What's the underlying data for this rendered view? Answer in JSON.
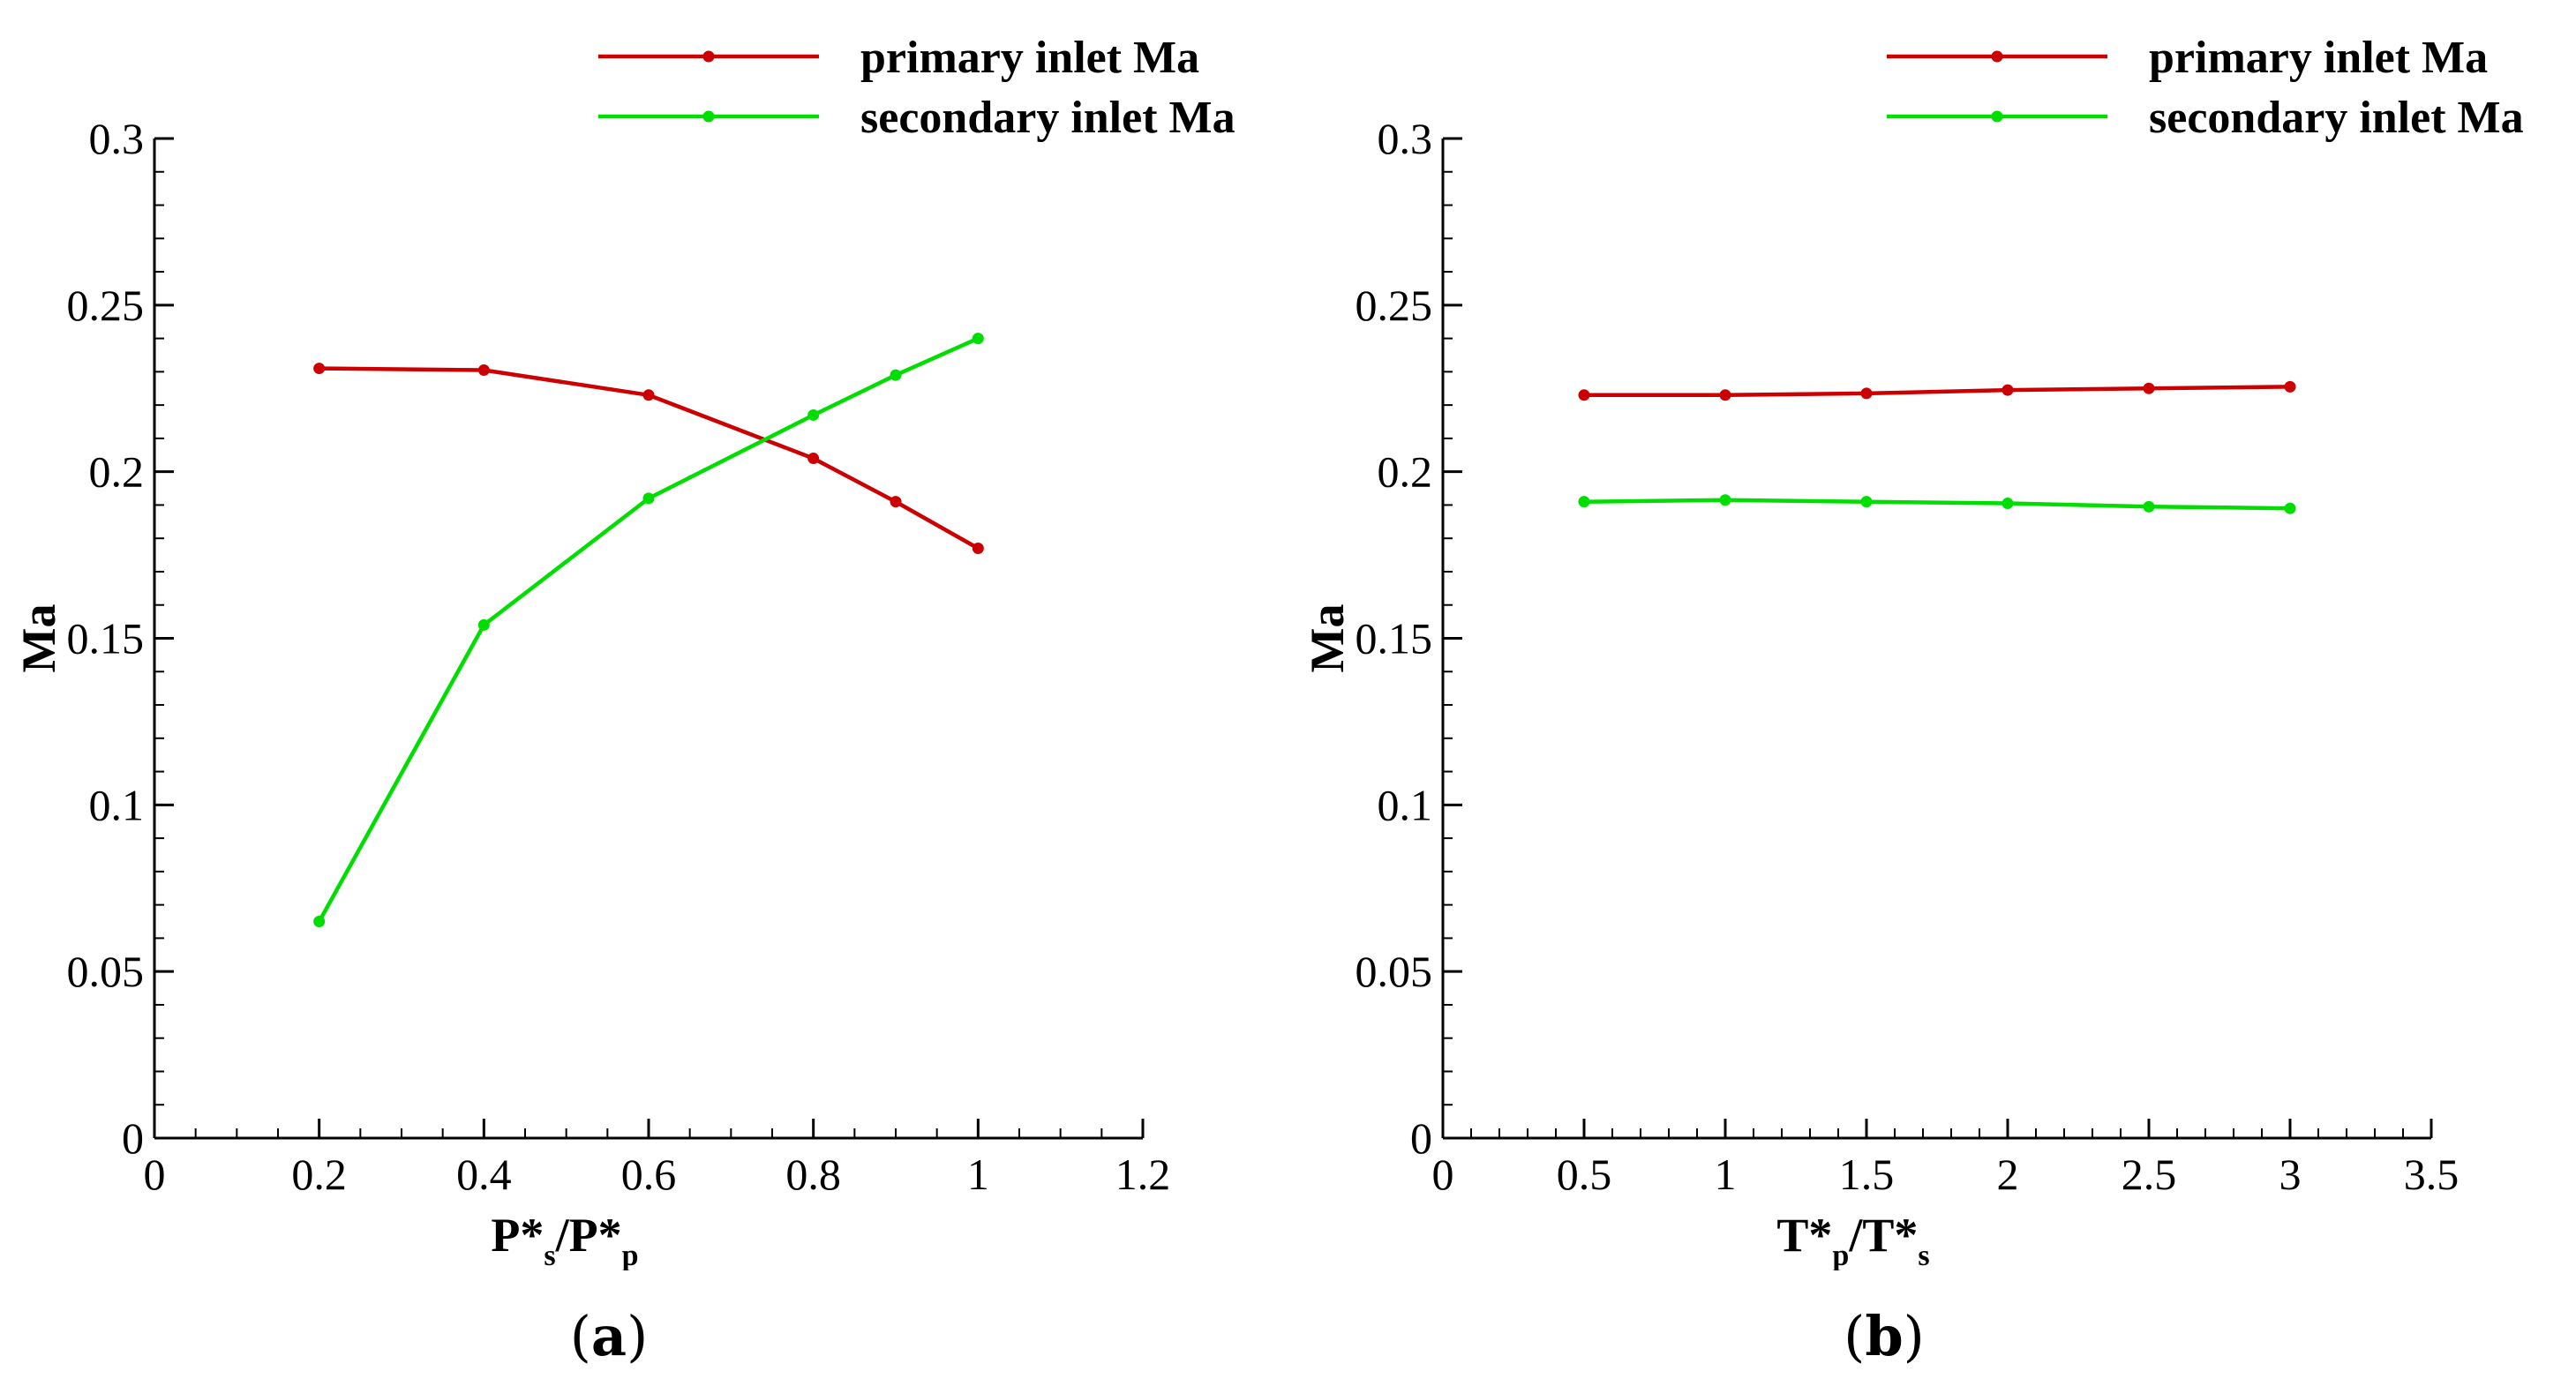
{
  "chart_data": [
    {
      "type": "line",
      "panel_label": "a",
      "xlabel": {
        "main": "P*",
        "sub": "s",
        "sep": "/P*",
        "sub2": "p"
      },
      "ylabel": "Ma",
      "xlim": [
        0,
        1.2
      ],
      "ylim": [
        0,
        0.3
      ],
      "x_ticks": [
        0,
        0.2,
        0.4,
        0.6,
        0.8,
        1,
        1.2
      ],
      "x_tick_labels": [
        "0",
        "0.2",
        "0.4",
        "0.6",
        "0.8",
        "1",
        "1.2"
      ],
      "y_ticks": [
        0,
        0.05,
        0.1,
        0.15,
        0.2,
        0.25,
        0.3
      ],
      "y_tick_labels": [
        "0",
        "0.05",
        "0.1",
        "0.15",
        "0.2",
        "0.25",
        "0.3"
      ],
      "x_minor_step": 0.05,
      "y_minor_step": 0.01,
      "legend_position": "top-right",
      "series": [
        {
          "name": "primary inlet Ma",
          "color": "#cc0000",
          "x": [
            0.2,
            0.4,
            0.6,
            0.8,
            0.9,
            1.0
          ],
          "y": [
            0.231,
            0.2305,
            0.223,
            0.204,
            0.191,
            0.177
          ]
        },
        {
          "name": "secondary inlet Ma",
          "color": "#00dd00",
          "x": [
            0.2,
            0.4,
            0.6,
            0.8,
            0.9,
            1.0
          ],
          "y": [
            0.065,
            0.154,
            0.192,
            0.217,
            0.229,
            0.24
          ]
        }
      ]
    },
    {
      "type": "line",
      "panel_label": "b",
      "xlabel": {
        "main": "T*",
        "sub": "p",
        "sep": "/T*",
        "sub2": "s"
      },
      "ylabel": "Ma",
      "xlim": [
        0,
        3.5
      ],
      "ylim": [
        0,
        0.3
      ],
      "x_ticks": [
        0,
        0.5,
        1,
        1.5,
        2,
        2.5,
        3,
        3.5
      ],
      "x_tick_labels": [
        "0",
        "0.5",
        "1",
        "1.5",
        "2",
        "2.5",
        "3",
        "3.5"
      ],
      "y_ticks": [
        0,
        0.05,
        0.1,
        0.15,
        0.2,
        0.25,
        0.3
      ],
      "y_tick_labels": [
        "0",
        "0.05",
        "0.1",
        "0.15",
        "0.2",
        "0.25",
        "0.3"
      ],
      "x_minor_step": 0.1,
      "y_minor_step": 0.01,
      "legend_position": "top-right",
      "series": [
        {
          "name": "primary inlet Ma",
          "color": "#cc0000",
          "x": [
            0.5,
            1.0,
            1.5,
            2.0,
            2.5,
            3.0
          ],
          "y": [
            0.223,
            0.223,
            0.2235,
            0.2245,
            0.225,
            0.2255
          ]
        },
        {
          "name": "secondary inlet Ma",
          "color": "#00dd00",
          "x": [
            0.5,
            1.0,
            1.5,
            2.0,
            2.5,
            3.0
          ],
          "y": [
            0.191,
            0.1915,
            0.191,
            0.1905,
            0.1895,
            0.189
          ]
        }
      ]
    }
  ],
  "captions": {
    "a": "a",
    "b": "b"
  }
}
